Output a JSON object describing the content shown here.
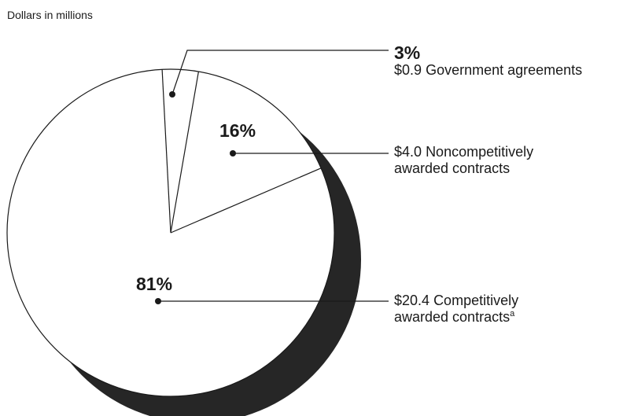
{
  "units_label": "Dollars in millions",
  "chart_data": {
    "type": "pie",
    "slices": [
      {
        "percent_label": "3%",
        "amount": "$0.9",
        "category": "Government agreements",
        "category_lines": [
          "Government agreements"
        ],
        "value": 0.9,
        "percent": 3
      },
      {
        "percent_label": "16%",
        "amount": "$4.0",
        "category": "Noncompetitively awarded contracts",
        "category_lines": [
          "Noncompetitively",
          "awarded contracts"
        ],
        "value": 4.0,
        "percent": 16
      },
      {
        "percent_label": "81%",
        "amount": "$20.4",
        "category": "Competitively awarded contracts",
        "category_lines": [
          "Competitively",
          "awarded contracts"
        ],
        "footnote_marker": "a",
        "value": 20.4,
        "percent": 81
      }
    ]
  }
}
